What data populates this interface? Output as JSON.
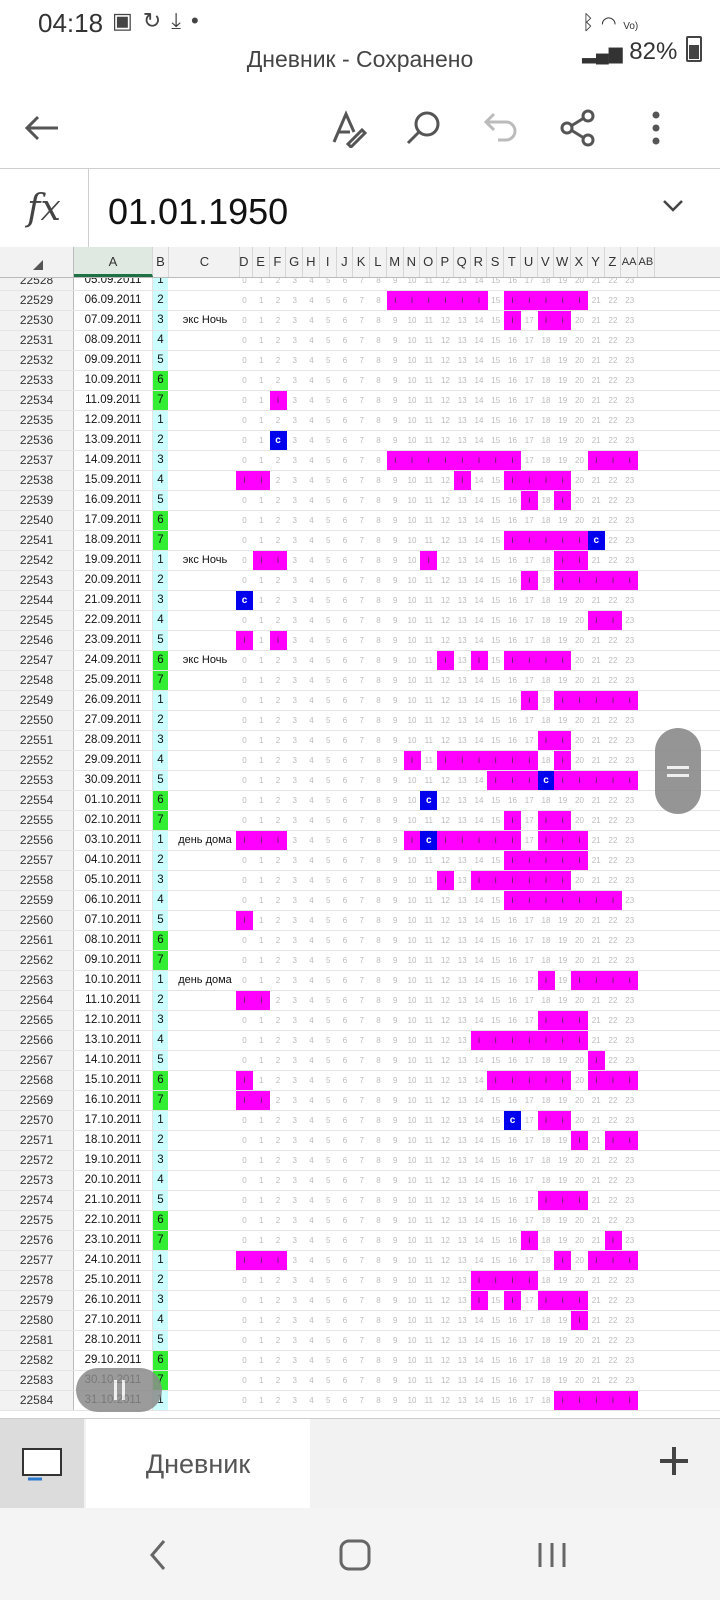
{
  "status_bar": {
    "time": "04:18",
    "right_text": "82%",
    "icons": [
      "image-icon",
      "sync-icon",
      "download-icon",
      "dot-icon",
      "bluetooth-icon",
      "wifi-icon",
      "volte-icon",
      "signal-icon",
      "battery-icon"
    ]
  },
  "title": "Дневник - Сохранено",
  "toolbar": {
    "icons": [
      "back-arrow-icon",
      "draw-pen-icon",
      "search-icon",
      "undo-icon",
      "share-icon",
      "more-vertical-icon"
    ]
  },
  "formula_bar": {
    "fx_label": "fx",
    "value": "01.01.1950"
  },
  "column_headers": [
    "A",
    "B",
    "C",
    "D",
    "E",
    "F",
    "G",
    "H",
    "I",
    "J",
    "K",
    "L",
    "M",
    "N",
    "O",
    "P",
    "Q",
    "R",
    "S",
    "T",
    "U",
    "V",
    "W",
    "X",
    "Y",
    "Z",
    "AA",
    "AB"
  ],
  "hour_labels": [
    "0",
    "1",
    "2",
    "3",
    "4",
    "5",
    "6",
    "7",
    "8",
    "9",
    "10",
    "11",
    "12",
    "13",
    "14",
    "15",
    "16",
    "17",
    "18",
    "19",
    "20",
    "21",
    "22",
    "23"
  ],
  "rows": [
    {
      "n": "22528",
      "date": "05.09.2011",
      "dow": "1",
      "note": "",
      "m": [],
      "c": []
    },
    {
      "n": "22529",
      "date": "06.09.2011",
      "dow": "2",
      "note": "",
      "m": [
        9,
        10,
        11,
        12,
        13,
        14,
        16,
        17,
        18,
        19,
        20
      ],
      "c": []
    },
    {
      "n": "22530",
      "date": "07.09.2011",
      "dow": "3",
      "note": "экс Ночь",
      "m": [
        16,
        18,
        19
      ],
      "c": []
    },
    {
      "n": "22531",
      "date": "08.09.2011",
      "dow": "4",
      "note": "",
      "m": [],
      "c": []
    },
    {
      "n": "22532",
      "date": "09.09.2011",
      "dow": "5",
      "note": "",
      "m": [],
      "c": []
    },
    {
      "n": "22533",
      "date": "10.09.2011",
      "dow": "6",
      "note": "",
      "m": [],
      "c": []
    },
    {
      "n": "22534",
      "date": "11.09.2011",
      "dow": "7",
      "note": "",
      "m": [
        2
      ],
      "c": []
    },
    {
      "n": "22535",
      "date": "12.09.2011",
      "dow": "1",
      "note": "",
      "m": [],
      "c": []
    },
    {
      "n": "22536",
      "date": "13.09.2011",
      "dow": "2",
      "note": "",
      "m": [],
      "c": [
        2
      ]
    },
    {
      "n": "22537",
      "date": "14.09.2011",
      "dow": "3",
      "note": "",
      "m": [
        9,
        10,
        11,
        12,
        13,
        14,
        15,
        16,
        21,
        22,
        23
      ],
      "c": []
    },
    {
      "n": "22538",
      "date": "15.09.2011",
      "dow": "4",
      "note": "",
      "m": [
        0,
        1,
        13,
        16,
        17,
        18,
        19
      ],
      "c": []
    },
    {
      "n": "22539",
      "date": "16.09.2011",
      "dow": "5",
      "note": "",
      "m": [
        17,
        19
      ],
      "c": []
    },
    {
      "n": "22540",
      "date": "17.09.2011",
      "dow": "6",
      "note": "",
      "m": [],
      "c": []
    },
    {
      "n": "22541",
      "date": "18.09.2011",
      "dow": "7",
      "note": "",
      "m": [
        16,
        17,
        18,
        19,
        20
      ],
      "c": [
        21
      ]
    },
    {
      "n": "22542",
      "date": "19.09.2011",
      "dow": "1",
      "note": "экс Ночь",
      "m": [
        1,
        2,
        11,
        19,
        20
      ],
      "c": []
    },
    {
      "n": "22543",
      "date": "20.09.2011",
      "dow": "2",
      "note": "",
      "m": [
        17,
        19,
        20,
        21,
        22,
        23
      ],
      "c": []
    },
    {
      "n": "22544",
      "date": "21.09.2011",
      "dow": "3",
      "note": "",
      "m": [],
      "c": [
        0
      ]
    },
    {
      "n": "22545",
      "date": "22.09.2011",
      "dow": "4",
      "note": "",
      "m": [
        21,
        22
      ],
      "c": []
    },
    {
      "n": "22546",
      "date": "23.09.2011",
      "dow": "5",
      "note": "",
      "m": [
        0,
        2
      ],
      "c": []
    },
    {
      "n": "22547",
      "date": "24.09.2011",
      "dow": "6",
      "note": "экс Ночь",
      "m": [
        12,
        14,
        16,
        17,
        18,
        19
      ],
      "c": []
    },
    {
      "n": "22548",
      "date": "25.09.2011",
      "dow": "7",
      "note": "",
      "m": [],
      "c": []
    },
    {
      "n": "22549",
      "date": "26.09.2011",
      "dow": "1",
      "note": "",
      "m": [
        17,
        19,
        20,
        21,
        22,
        23
      ],
      "c": []
    },
    {
      "n": "22550",
      "date": "27.09.2011",
      "dow": "2",
      "note": "",
      "m": [],
      "c": []
    },
    {
      "n": "22551",
      "date": "28.09.2011",
      "dow": "3",
      "note": "",
      "m": [
        18,
        19
      ],
      "c": []
    },
    {
      "n": "22552",
      "date": "29.09.2011",
      "dow": "4",
      "note": "",
      "m": [
        10,
        12,
        13,
        14,
        15,
        16,
        17,
        19
      ],
      "c": []
    },
    {
      "n": "22553",
      "date": "30.09.2011",
      "dow": "5",
      "note": "",
      "m": [
        15,
        16,
        17,
        19,
        20,
        21,
        22,
        23
      ],
      "c": [
        18
      ]
    },
    {
      "n": "22554",
      "date": "01.10.2011",
      "dow": "6",
      "note": "",
      "m": [],
      "c": [
        11
      ]
    },
    {
      "n": "22555",
      "date": "02.10.2011",
      "dow": "7",
      "note": "",
      "m": [
        16,
        18,
        19
      ],
      "c": []
    },
    {
      "n": "22556",
      "date": "03.10.2011",
      "dow": "1",
      "note": "день дома",
      "m": [
        0,
        1,
        2,
        10,
        12,
        13,
        14,
        15,
        16,
        18,
        19,
        20
      ],
      "c": [
        11
      ]
    },
    {
      "n": "22557",
      "date": "04.10.2011",
      "dow": "2",
      "note": "",
      "m": [
        16,
        17,
        18,
        19,
        20
      ],
      "c": []
    },
    {
      "n": "22558",
      "date": "05.10.2011",
      "dow": "3",
      "note": "",
      "m": [
        12,
        14,
        15,
        16,
        17,
        18,
        19
      ],
      "c": []
    },
    {
      "n": "22559",
      "date": "06.10.2011",
      "dow": "4",
      "note": "",
      "m": [
        16,
        17,
        18,
        19,
        20,
        21,
        22
      ],
      "c": []
    },
    {
      "n": "22560",
      "date": "07.10.2011",
      "dow": "5",
      "note": "",
      "m": [
        0
      ],
      "c": []
    },
    {
      "n": "22561",
      "date": "08.10.2011",
      "dow": "6",
      "note": "",
      "m": [],
      "c": []
    },
    {
      "n": "22562",
      "date": "09.10.2011",
      "dow": "7",
      "note": "",
      "m": [],
      "c": []
    },
    {
      "n": "22563",
      "date": "10.10.2011",
      "dow": "1",
      "note": "день дома",
      "m": [
        18,
        20,
        21,
        22,
        23
      ],
      "c": []
    },
    {
      "n": "22564",
      "date": "11.10.2011",
      "dow": "2",
      "note": "",
      "m": [
        0,
        1
      ],
      "c": []
    },
    {
      "n": "22565",
      "date": "12.10.2011",
      "dow": "3",
      "note": "",
      "m": [
        18,
        19,
        20
      ],
      "c": []
    },
    {
      "n": "22566",
      "date": "13.10.2011",
      "dow": "4",
      "note": "",
      "m": [
        14,
        15,
        16,
        17,
        18,
        19,
        20
      ],
      "c": []
    },
    {
      "n": "22567",
      "date": "14.10.2011",
      "dow": "5",
      "note": "",
      "m": [
        21
      ],
      "c": []
    },
    {
      "n": "22568",
      "date": "15.10.2011",
      "dow": "6",
      "note": "",
      "m": [
        0,
        15,
        16,
        17,
        18,
        19,
        21,
        22,
        23
      ],
      "c": []
    },
    {
      "n": "22569",
      "date": "16.10.2011",
      "dow": "7",
      "note": "",
      "m": [
        0,
        1
      ],
      "c": []
    },
    {
      "n": "22570",
      "date": "17.10.2011",
      "dow": "1",
      "note": "",
      "m": [
        18,
        19
      ],
      "c": [
        16
      ]
    },
    {
      "n": "22571",
      "date": "18.10.2011",
      "dow": "2",
      "note": "",
      "m": [
        20,
        22,
        23
      ],
      "c": []
    },
    {
      "n": "22572",
      "date": "19.10.2011",
      "dow": "3",
      "note": "",
      "m": [],
      "c": []
    },
    {
      "n": "22573",
      "date": "20.10.2011",
      "dow": "4",
      "note": "",
      "m": [],
      "c": []
    },
    {
      "n": "22574",
      "date": "21.10.2011",
      "dow": "5",
      "note": "",
      "m": [
        18,
        19,
        20
      ],
      "c": []
    },
    {
      "n": "22575",
      "date": "22.10.2011",
      "dow": "6",
      "note": "",
      "m": [],
      "c": []
    },
    {
      "n": "22576",
      "date": "23.10.2011",
      "dow": "7",
      "note": "",
      "m": [
        17,
        22
      ],
      "c": []
    },
    {
      "n": "22577",
      "date": "24.10.2011",
      "dow": "1",
      "note": "",
      "m": [
        0,
        1,
        2,
        19,
        21,
        22,
        23
      ],
      "c": []
    },
    {
      "n": "22578",
      "date": "25.10.2011",
      "dow": "2",
      "note": "",
      "m": [
        14,
        15,
        16,
        17
      ],
      "c": []
    },
    {
      "n": "22579",
      "date": "26.10.2011",
      "dow": "3",
      "note": "",
      "m": [
        14,
        16,
        18,
        19,
        20
      ],
      "c": []
    },
    {
      "n": "22580",
      "date": "27.10.2011",
      "dow": "4",
      "note": "",
      "m": [
        20
      ],
      "c": []
    },
    {
      "n": "22581",
      "date": "28.10.2011",
      "dow": "5",
      "note": "",
      "m": [],
      "c": []
    },
    {
      "n": "22582",
      "date": "29.10.2011",
      "dow": "6",
      "note": "",
      "m": [],
      "c": []
    },
    {
      "n": "22583",
      "date": "30.10.2011",
      "dow": "7",
      "note": "",
      "m": [],
      "c": []
    },
    {
      "n": "22584",
      "date": "31.10.2011",
      "dow": "1",
      "note": "",
      "m": [
        19,
        20,
        21,
        22,
        23
      ],
      "c": []
    }
  ],
  "mark_text": "i",
  "c_text": "c",
  "sheet_bar": {
    "tab_label": "Дневник"
  },
  "colors": {
    "magenta": "#ff00ff",
    "blue_c": "#0000ee",
    "weekend_green": "#33ee33",
    "weekday_cyan": "#ccffff",
    "selected_col": "#1e7145"
  }
}
